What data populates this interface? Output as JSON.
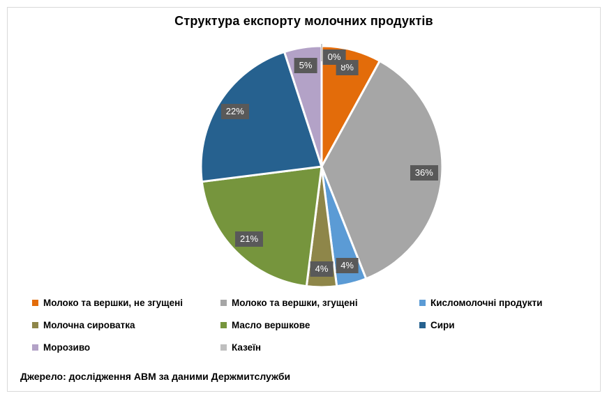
{
  "title": "Структура експорту молочних продуктів",
  "footer": "Джерело: дослідження АВМ за даними Держмитслужби",
  "chart_data": {
    "type": "pie",
    "title": "Структура експорту молочних продуктів",
    "unit": "percent",
    "start_angle_deg": 0,
    "direction": "clockwise",
    "legend_position": "bottom",
    "categories": [
      "Молоко та вершки, не згущені",
      "Молоко та вершки, згущені",
      "Кисломолочні продукти",
      "Молочна сироватка",
      "Масло вершкове",
      "Сири",
      "Морозиво",
      "Казеїн"
    ],
    "values": [
      8,
      36,
      4,
      4,
      21,
      22,
      5,
      0
    ],
    "labels": [
      "8%",
      "36%",
      "4%",
      "4%",
      "21%",
      "22%",
      "5%",
      "0%"
    ],
    "colors": [
      "#E36C0A",
      "#A6A6A6",
      "#5B9BD5",
      "#8E8649",
      "#76953D",
      "#26618F",
      "#B3A2C7",
      "#BFBFBF"
    ],
    "slice_border_color": "#FFFFFF",
    "label_box_color": "#595959",
    "label_text_color": "#FFFFFF",
    "leader_line_color": "#A6A6A6"
  }
}
